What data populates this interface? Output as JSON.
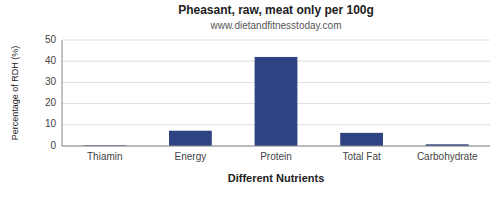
{
  "chart_data": {
    "type": "bar",
    "title": "Pheasant, raw, meat only per 100g",
    "subtitle": "www.dietandfitnesstoday.com",
    "xlabel": "Different Nutrients",
    "ylabel": "Percentage of RDH (%)",
    "categories": [
      "Thiamin",
      "Energy",
      "Protein",
      "Total Fat",
      "Carbohydrate"
    ],
    "values": [
      0.3,
      7.2,
      42.0,
      6.2,
      0.8
    ],
    "color": "#2e4482",
    "ylim": [
      0,
      50
    ],
    "yticks": [
      0,
      10,
      20,
      30,
      40,
      50
    ],
    "grid": true
  }
}
